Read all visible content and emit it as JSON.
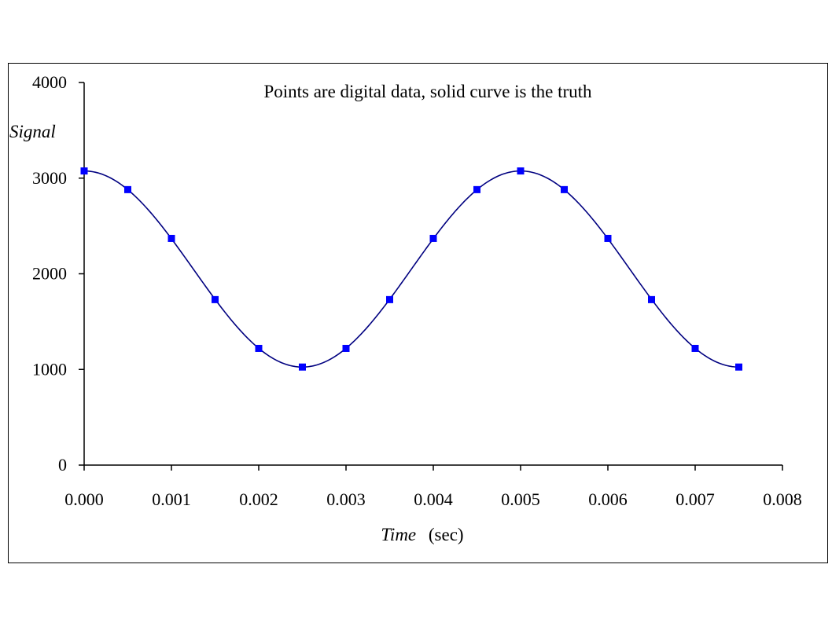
{
  "chart_data": {
    "type": "line",
    "title": "Points are digital data, solid curve is the truth",
    "xlabel_italic": "Time",
    "xlabel_unit": "(sec)",
    "ylabel": "Signal",
    "xlim": [
      0,
      0.008
    ],
    "ylim": [
      0,
      4000
    ],
    "x_ticks": [
      0,
      0.001,
      0.002,
      0.003,
      0.004,
      0.005,
      0.006,
      0.007,
      0.008
    ],
    "x_tick_labels": [
      "0.000",
      "0.001",
      "0.002",
      "0.003",
      "0.004",
      "0.005",
      "0.006",
      "0.007",
      "0.008"
    ],
    "y_ticks": [
      0,
      1000,
      2000,
      3000,
      4000
    ],
    "y_tick_labels": [
      "0",
      "1000",
      "2000",
      "3000",
      "4000"
    ],
    "grid": false,
    "series": [
      {
        "kind": "curve",
        "description_role": "truth",
        "color": "#000080",
        "function": {
          "offset": 2050,
          "amplitude": 1025,
          "period": 0.005
        },
        "x_range": [
          0,
          0.0075
        ]
      },
      {
        "kind": "points",
        "description_role": "digital data",
        "color": "#0000FF",
        "marker": "square",
        "x": [
          0,
          0.0005,
          0.001,
          0.0015,
          0.002,
          0.0025,
          0.003,
          0.0035,
          0.004,
          0.0045,
          0.005,
          0.0055,
          0.006,
          0.0065,
          0.007,
          0.0075
        ],
        "y": [
          3075,
          2880,
          2370,
          1730,
          1220,
          1025,
          1220,
          1730,
          2370,
          2880,
          3075,
          2880,
          2370,
          1730,
          1220,
          1025
        ]
      }
    ]
  }
}
